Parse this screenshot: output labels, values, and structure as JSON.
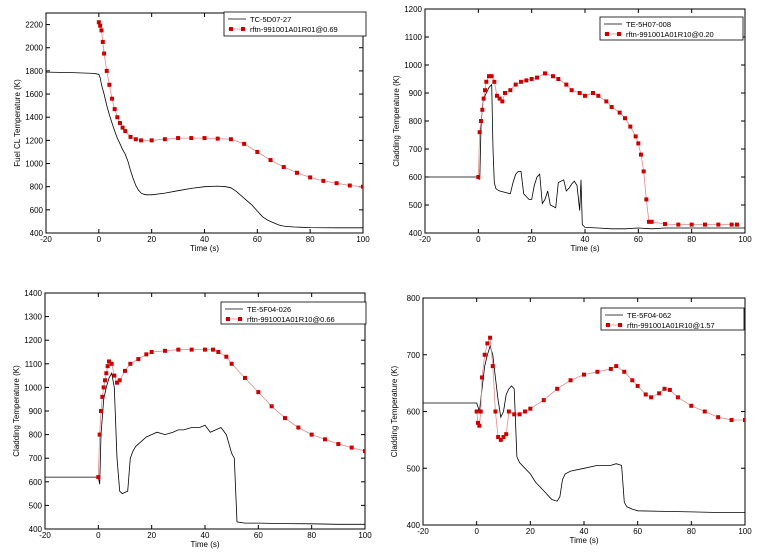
{
  "chart_data": [
    {
      "type": "line",
      "xlabel": "Time (s)",
      "ylabel": "Fuel CL Temperature (K)",
      "xlim": [
        -20,
        100
      ],
      "ylim": [
        400,
        2300
      ],
      "xticks": [
        -20,
        0,
        20,
        40,
        60,
        80,
        100
      ],
      "yticks": [
        400,
        600,
        800,
        1000,
        1200,
        1400,
        1600,
        1800,
        2000,
        2200
      ],
      "legend_position": "top-right",
      "series": [
        {
          "name": "TC-5D07-27",
          "color": "#000000",
          "marker": "none",
          "x": [
            -20,
            -10,
            -2,
            -1,
            0,
            0.5,
            1,
            2,
            3,
            4,
            5,
            6,
            7,
            8,
            9,
            10,
            11,
            12,
            13,
            14,
            15,
            16,
            17,
            18,
            20,
            25,
            30,
            35,
            40,
            45,
            48,
            50,
            52,
            54,
            56,
            58,
            60,
            62,
            64,
            66,
            68,
            70,
            72,
            74,
            76,
            80,
            90,
            100
          ],
          "y": [
            1790,
            1785,
            1778,
            1775,
            1770,
            1740,
            1680,
            1600,
            1500,
            1420,
            1350,
            1280,
            1220,
            1170,
            1120,
            1080,
            1020,
            940,
            870,
            810,
            770,
            745,
            735,
            730,
            730,
            745,
            765,
            785,
            800,
            805,
            800,
            790,
            760,
            720,
            680,
            640,
            590,
            540,
            510,
            490,
            470,
            460,
            455,
            452,
            450,
            447,
            445,
            445
          ]
        },
        {
          "name": "rftn-991001A01R01@0.69",
          "color": "#cc0000",
          "marker": "square",
          "x": [
            0,
            0.5,
            1,
            1.5,
            2,
            3,
            4,
            5,
            6,
            7,
            8,
            9,
            10,
            12,
            14,
            16,
            20,
            25,
            30,
            35,
            40,
            45,
            50,
            55,
            60,
            65,
            70,
            75,
            80,
            85,
            90,
            95,
            100
          ],
          "y": [
            2220,
            2190,
            2150,
            2050,
            1950,
            1800,
            1680,
            1560,
            1470,
            1400,
            1350,
            1310,
            1280,
            1230,
            1210,
            1200,
            1200,
            1210,
            1220,
            1220,
            1220,
            1215,
            1210,
            1170,
            1100,
            1030,
            970,
            920,
            880,
            850,
            830,
            810,
            800
          ]
        }
      ]
    },
    {
      "type": "line",
      "xlabel": "Time (s)",
      "ylabel": "Cladding Temperature (K)",
      "xlim": [
        -20,
        100
      ],
      "ylim": [
        400,
        1200
      ],
      "xticks": [
        -20,
        0,
        20,
        40,
        60,
        80,
        100
      ],
      "yticks": [
        400,
        500,
        600,
        700,
        800,
        900,
        1000,
        1100,
        1200
      ],
      "legend_position": "top-right",
      "series": [
        {
          "name": "TE-5H07-008",
          "color": "#000000",
          "marker": "none",
          "x": [
            -20,
            -5,
            0,
            0.3,
            0.6,
            1,
            1.5,
            2,
            3,
            4,
            5,
            5.5,
            6,
            6.5,
            7,
            8,
            10,
            12,
            13,
            14,
            15,
            16,
            17,
            18,
            19,
            20,
            21,
            22,
            23,
            24,
            25,
            26,
            27,
            28,
            29,
            30,
            31,
            32,
            33,
            34,
            35,
            36,
            37,
            38,
            38.5,
            39,
            40,
            45,
            50,
            55,
            60,
            65,
            70,
            80,
            90,
            100
          ],
          "y": [
            600,
            600,
            600,
            590,
            610,
            780,
            850,
            880,
            900,
            920,
            930,
            700,
            580,
            560,
            555,
            550,
            545,
            540,
            580,
            610,
            620,
            620,
            540,
            530,
            520,
            520,
            570,
            600,
            610,
            505,
            520,
            550,
            500,
            495,
            490,
            580,
            585,
            590,
            550,
            560,
            575,
            585,
            570,
            480,
            590,
            430,
            420,
            418,
            415,
            415,
            418,
            415,
            418,
            418,
            418,
            418
          ]
        },
        {
          "name": "rftn-991001A01R10@0.20",
          "color": "#cc0000",
          "marker": "square",
          "x": [
            0,
            0.5,
            1,
            1.5,
            2,
            2.5,
            3,
            4,
            5,
            6,
            7,
            8,
            9,
            10,
            12,
            14,
            16,
            18,
            20,
            22,
            25,
            28,
            30,
            33,
            35,
            38,
            40,
            43,
            45,
            48,
            50,
            53,
            55,
            57,
            59,
            60,
            61,
            62,
            63,
            64,
            65,
            70,
            75,
            80,
            85,
            90,
            95,
            97
          ],
          "y": [
            600,
            760,
            800,
            840,
            880,
            910,
            940,
            960,
            960,
            940,
            890,
            880,
            870,
            900,
            910,
            930,
            940,
            945,
            950,
            955,
            970,
            960,
            950,
            930,
            910,
            900,
            890,
            900,
            890,
            870,
            850,
            830,
            810,
            780,
            745,
            720,
            680,
            620,
            520,
            440,
            440,
            432,
            430,
            430,
            430,
            430,
            430,
            430
          ]
        }
      ]
    },
    {
      "type": "line",
      "xlabel": "Time (s)",
      "ylabel": "Cladding Temperature (K)",
      "xlim": [
        -20,
        100
      ],
      "ylim": [
        400,
        1400
      ],
      "xticks": [
        -20,
        0,
        20,
        40,
        60,
        80,
        100
      ],
      "yticks": [
        400,
        500,
        600,
        700,
        800,
        900,
        1000,
        1100,
        1200,
        1300,
        1400
      ],
      "legend_position": "top-right",
      "series": [
        {
          "name": "TE-5F04-026",
          "color": "#000000",
          "marker": "none",
          "x": [
            -20,
            -5,
            0,
            0.5,
            1,
            2,
            3,
            4,
            5,
            6,
            7,
            8,
            9,
            10,
            11,
            12,
            13,
            14,
            16,
            18,
            20,
            22,
            25,
            28,
            30,
            32,
            35,
            38,
            40,
            42,
            44,
            46,
            48,
            49,
            50,
            51,
            52,
            55,
            60,
            70,
            80,
            90,
            100
          ],
          "y": [
            620,
            620,
            620,
            590,
            800,
            950,
            1000,
            1040,
            1060,
            1000,
            700,
            560,
            550,
            555,
            560,
            700,
            730,
            750,
            770,
            790,
            800,
            810,
            800,
            810,
            820,
            820,
            830,
            830,
            840,
            810,
            820,
            830,
            800,
            760,
            720,
            700,
            430,
            425,
            425,
            423,
            422,
            420,
            420
          ]
        },
        {
          "name": "rftn-991001A01R10@0.66",
          "color": "#cc0000",
          "marker": "square",
          "x": [
            0,
            0.5,
            1,
            1.5,
            2,
            2.5,
            3,
            3.5,
            4,
            5,
            6,
            7,
            8,
            10,
            12,
            15,
            18,
            20,
            25,
            30,
            35,
            40,
            43,
            45,
            48,
            50,
            55,
            60,
            65,
            70,
            75,
            80,
            85,
            90,
            95,
            100
          ],
          "y": [
            620,
            800,
            900,
            960,
            1000,
            1030,
            1060,
            1090,
            1110,
            1100,
            1050,
            1020,
            1030,
            1070,
            1100,
            1120,
            1140,
            1150,
            1155,
            1160,
            1160,
            1160,
            1160,
            1150,
            1130,
            1100,
            1040,
            980,
            920,
            870,
            830,
            800,
            780,
            760,
            745,
            730
          ]
        }
      ]
    },
    {
      "type": "line",
      "xlabel": "Time (s)",
      "ylabel": "Cladding Temperature (K)",
      "xlim": [
        -20,
        100
      ],
      "ylim": [
        400,
        800
      ],
      "xticks": [
        -20,
        0,
        20,
        40,
        60,
        80,
        100
      ],
      "yticks": [
        400,
        500,
        600,
        700,
        800
      ],
      "legend_position": "top-right",
      "series": [
        {
          "name": "TE-5F04-062",
          "color": "#000000",
          "marker": "none",
          "x": [
            -20,
            -5,
            0,
            1,
            2,
            3,
            4,
            5,
            6,
            7,
            8,
            9,
            10,
            11,
            12,
            13,
            14,
            15,
            16,
            18,
            20,
            22,
            25,
            28,
            30,
            31,
            32,
            33,
            35,
            40,
            45,
            50,
            52,
            54,
            55,
            56,
            58,
            60,
            70,
            80,
            90,
            100
          ],
          "y": [
            615,
            615,
            615,
            600,
            640,
            680,
            700,
            715,
            700,
            660,
            620,
            590,
            600,
            630,
            640,
            645,
            640,
            520,
            510,
            500,
            490,
            475,
            460,
            445,
            442,
            450,
            480,
            490,
            495,
            500,
            505,
            505,
            508,
            505,
            440,
            432,
            428,
            425,
            424,
            423,
            422,
            422
          ]
        },
        {
          "name": "rftn-991001A01R10@1.57",
          "color": "#cc0000",
          "marker": "square",
          "x": [
            0,
            0.5,
            1,
            1.5,
            2,
            3,
            4,
            5,
            6,
            7,
            8,
            9,
            10,
            11,
            12,
            14,
            16,
            18,
            20,
            25,
            30,
            35,
            40,
            45,
            50,
            52,
            55,
            58,
            60,
            63,
            65,
            68,
            70,
            72,
            75,
            80,
            85,
            90,
            95,
            100
          ],
          "y": [
            600,
            580,
            575,
            600,
            660,
            700,
            720,
            730,
            680,
            600,
            555,
            550,
            555,
            560,
            600,
            595,
            595,
            600,
            605,
            620,
            640,
            655,
            665,
            670,
            675,
            680,
            670,
            655,
            645,
            630,
            625,
            632,
            640,
            638,
            625,
            610,
            600,
            590,
            585,
            585
          ]
        }
      ]
    }
  ]
}
